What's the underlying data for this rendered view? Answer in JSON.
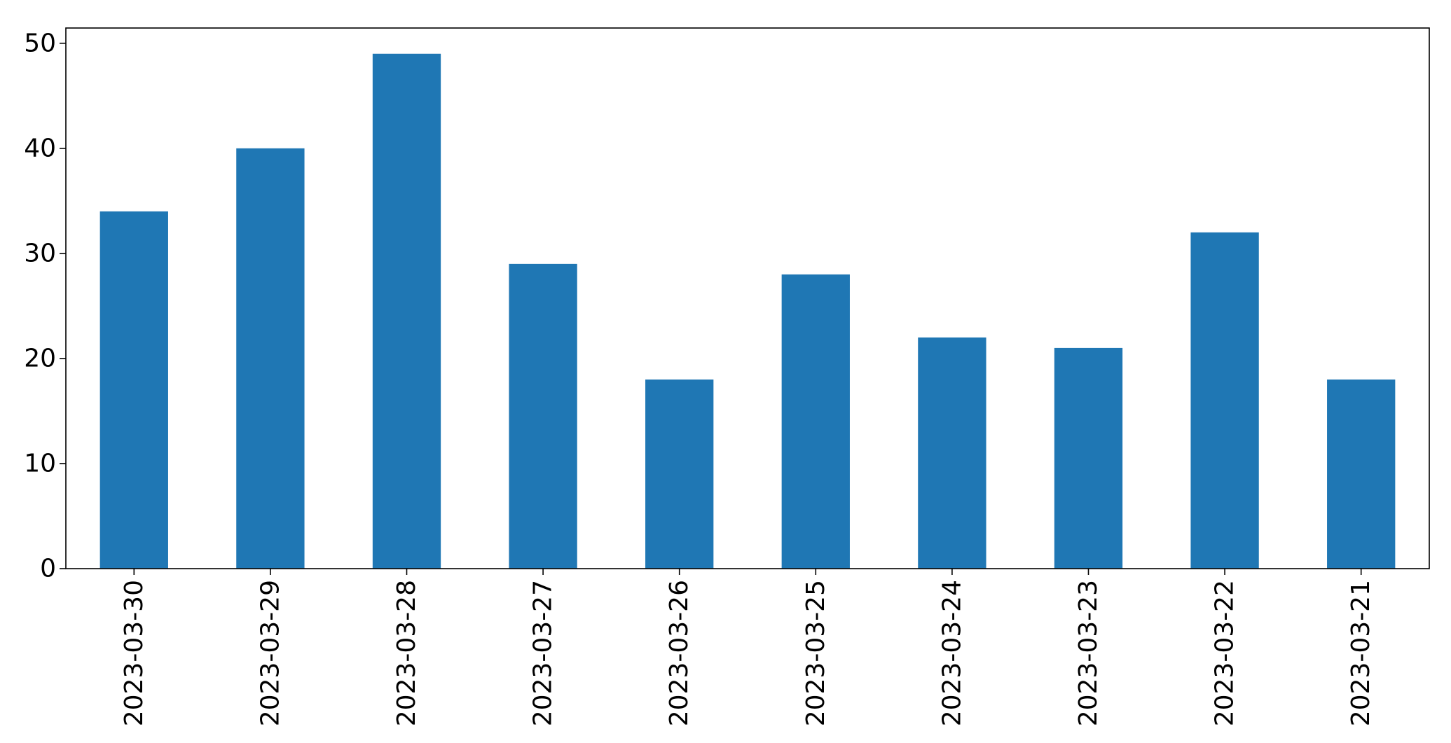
{
  "chart_data": {
    "type": "bar",
    "title": "",
    "xlabel": "",
    "ylabel": "",
    "categories": [
      "2023-03-30",
      "2023-03-29",
      "2023-03-28",
      "2023-03-27",
      "2023-03-26",
      "2023-03-25",
      "2023-03-24",
      "2023-03-23",
      "2023-03-22",
      "2023-03-21"
    ],
    "values": [
      34,
      40,
      49,
      29,
      18,
      28,
      22,
      21,
      32,
      18
    ],
    "ylim": [
      0,
      51.45
    ],
    "yticks": [
      0,
      10,
      20,
      30,
      40,
      50
    ],
    "grid": false,
    "legend": "none",
    "bar_color": "#1f77b4"
  }
}
